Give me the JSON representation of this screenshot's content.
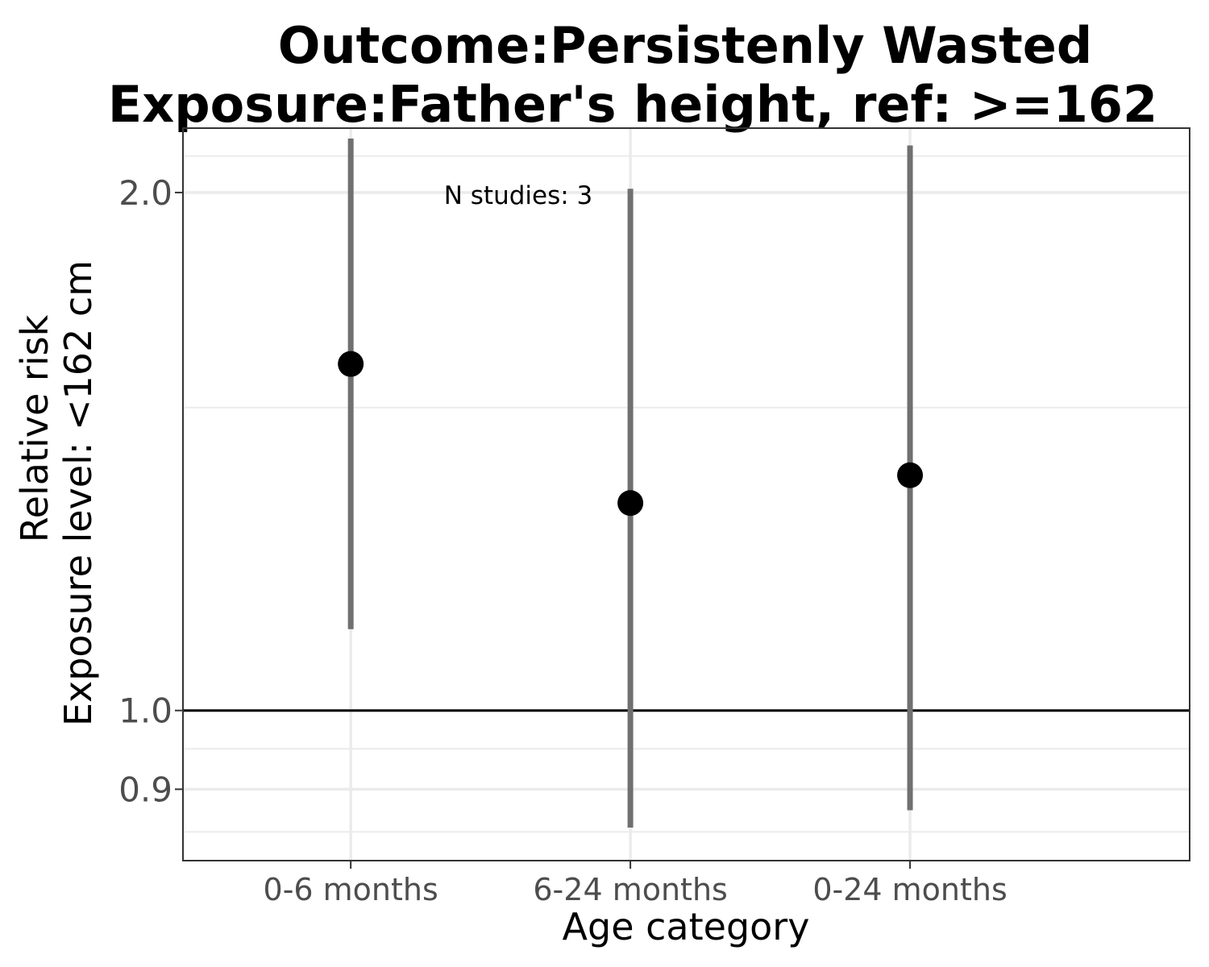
{
  "chart_data": {
    "type": "scatter",
    "title_lines": [
      "Outcome:Persistenly Wasted",
      "Exposure:Father's height, ref: >=162"
    ],
    "xlabel": "Age category",
    "ylabel_lines": [
      "Relative risk",
      "Exposure level: <162 cm"
    ],
    "y_scale": "log",
    "ylim": [
      0.818,
      2.18
    ],
    "y_ticks": [
      0.9,
      1.0,
      2.0
    ],
    "y_tick_labels": [
      "0.9",
      "1.0",
      "2.0"
    ],
    "y_minor_ticks": [
      0.85,
      0.95,
      1.5,
      2.1
    ],
    "reference_line": 1.0,
    "categories": [
      "0-6 months",
      "6-24 months",
      "0-24 months"
    ],
    "points": [
      {
        "category": "0-6 months",
        "rr": 1.59,
        "ci_lower": 1.115,
        "ci_upper": 2.15
      },
      {
        "category": "6-24 months",
        "rr": 1.32,
        "ci_lower": 0.855,
        "ci_upper": 2.01
      },
      {
        "category": "0-24 months",
        "rr": 1.37,
        "ci_lower": 0.875,
        "ci_upper": 2.13
      }
    ],
    "annotation": "N studies: 3",
    "grid": true,
    "colors": {
      "point": "#000000",
      "ci_bar": "#707070",
      "grid": "#ebebeb",
      "reference_line": "#000000",
      "panel_border": "#333333"
    }
  }
}
